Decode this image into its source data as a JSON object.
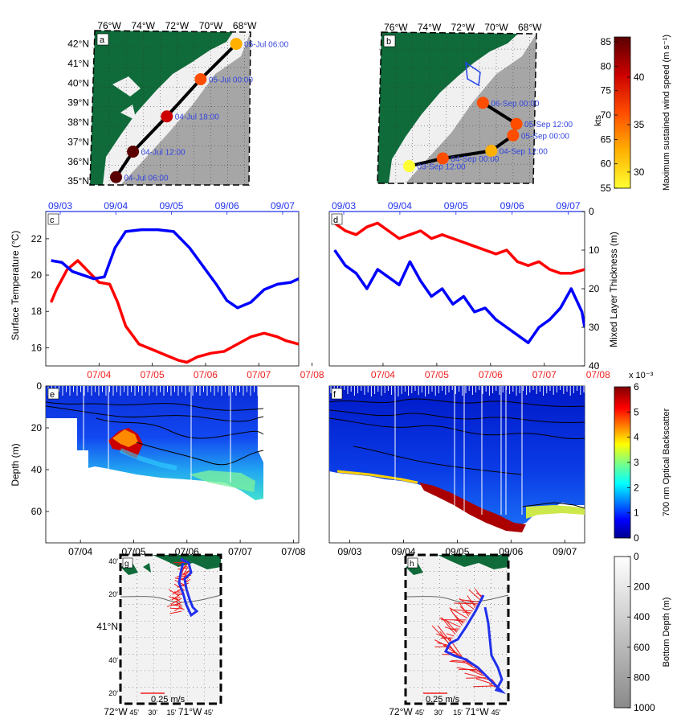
{
  "chart_data": [
    {
      "panel": "a",
      "type": "map",
      "lon_labels": [
        "76°W",
        "74°W",
        "72°W",
        "70°W",
        "68°W"
      ],
      "lat_labels": [
        "42°N",
        "41°N",
        "40°N",
        "39°N",
        "38°N",
        "37°N",
        "36°N",
        "35°N"
      ],
      "track": [
        {
          "lon": -75.6,
          "lat": 35.2,
          "label": "04-Jul 06:00",
          "wind_kts": 86
        },
        {
          "lon": -74.6,
          "lat": 36.5,
          "label": "04-Jul 12:00",
          "wind_kts": 86
        },
        {
          "lon": -72.6,
          "lat": 38.3,
          "label": "04-Jul 18:00",
          "wind_kts": 80
        },
        {
          "lon": -70.6,
          "lat": 40.2,
          "label": "05-Jul 00:00",
          "wind_kts": 68
        },
        {
          "lon": -68.5,
          "lat": 42.0,
          "label": "05-Jul 06:00",
          "wind_kts": 63
        }
      ]
    },
    {
      "panel": "b",
      "type": "map",
      "lon_labels": [
        "76°W",
        "74°W",
        "72°W",
        "70°W",
        "68°W"
      ],
      "track": [
        {
          "lon": -75.2,
          "lat": 35.7,
          "label": "03-Sep 12:00",
          "wind_kts": 57
        },
        {
          "lon": -73.2,
          "lat": 36.1,
          "label": "04-Sep 00:00",
          "wind_kts": 68
        },
        {
          "lon": -70.3,
          "lat": 36.5,
          "label": "04-Sep 12:00",
          "wind_kts": 63
        },
        {
          "lon": -69.0,
          "lat": 37.3,
          "label": "05-Sep 00:00",
          "wind_kts": 68
        },
        {
          "lon": -68.8,
          "lat": 37.9,
          "label": "05-Sep 12:00",
          "wind_kts": 70
        },
        {
          "lon": -70.8,
          "lat": 39.0,
          "label": "06-Sep 00:00",
          "wind_kts": 70
        }
      ]
    },
    {
      "panel": "colorbar-wind",
      "type": "colorbar",
      "ylabel": "Maximum sustained wind speed (m s⁻¹)",
      "unit_label": "kts",
      "kts_ticks": [
        85,
        80,
        75,
        70,
        65,
        60,
        55
      ],
      "ms_ticks": [
        40,
        35,
        30
      ],
      "colors": [
        "#ffff33",
        "#ffb000",
        "#ff4d00",
        "#cc0000",
        "#660000"
      ]
    },
    {
      "panel": "c",
      "type": "line",
      "ylabel": "Surface Temperature (°C)",
      "x_ticks": [
        "07/04",
        "07/05",
        "07/06",
        "07/07",
        "07/08"
      ],
      "top_ticks": [
        "09/03",
        "09/04",
        "09/05",
        "09/06",
        "09/07"
      ],
      "yticks": [
        16,
        18,
        20,
        22
      ],
      "ylim": [
        15,
        23.5
      ],
      "series": [
        {
          "color": "#ff0000",
          "points": [
            [
              -0.4,
              18.5
            ],
            [
              -0.3,
              19.2
            ],
            [
              -0.1,
              20.3
            ],
            [
              0.1,
              20.8
            ],
            [
              0.3,
              20.2
            ],
            [
              0.5,
              19.6
            ],
            [
              0.7,
              19.5
            ],
            [
              0.85,
              18.5
            ],
            [
              1.0,
              17.2
            ],
            [
              1.25,
              16.2
            ],
            [
              1.5,
              15.9
            ],
            [
              1.75,
              15.6
            ],
            [
              2.0,
              15.3
            ],
            [
              2.15,
              15.2
            ],
            [
              2.35,
              15.5
            ],
            [
              2.6,
              15.7
            ],
            [
              2.85,
              15.8
            ],
            [
              3.1,
              16.2
            ],
            [
              3.35,
              16.6
            ],
            [
              3.6,
              16.8
            ],
            [
              3.85,
              16.6
            ],
            [
              4.0,
              16.4
            ],
            [
              4.25,
              16.2
            ]
          ]
        },
        {
          "color": "#0000ff",
          "points": [
            [
              -0.4,
              20.8
            ],
            [
              -0.2,
              20.7
            ],
            [
              0.0,
              20.2
            ],
            [
              0.2,
              20.0
            ],
            [
              0.4,
              19.8
            ],
            [
              0.6,
              19.9
            ],
            [
              0.8,
              21.5
            ],
            [
              1.0,
              22.4
            ],
            [
              1.3,
              22.5
            ],
            [
              1.6,
              22.5
            ],
            [
              1.9,
              22.4
            ],
            [
              2.2,
              21.5
            ],
            [
              2.45,
              20.5
            ],
            [
              2.7,
              19.5
            ],
            [
              2.9,
              18.6
            ],
            [
              3.1,
              18.2
            ],
            [
              3.35,
              18.5
            ],
            [
              3.6,
              19.2
            ],
            [
              3.85,
              19.5
            ],
            [
              4.1,
              19.6
            ],
            [
              4.25,
              19.8
            ]
          ]
        }
      ]
    },
    {
      "panel": "d",
      "type": "line",
      "ylabel": "Mixed Layer Thickness (m)",
      "x_ticks": [
        "07/04",
        "07/05",
        "07/06",
        "07/07",
        "07/08"
      ],
      "top_ticks": [
        "09/03",
        "09/04",
        "09/05",
        "09/06",
        "09/07"
      ],
      "yticks": [
        0,
        10,
        20,
        30,
        40
      ],
      "ylim": [
        0,
        40
      ],
      "series": [
        {
          "color": "#ff0000",
          "points": [
            [
              -0.4,
              3
            ],
            [
              -0.2,
              5
            ],
            [
              0.0,
              6
            ],
            [
              0.2,
              4
            ],
            [
              0.4,
              3
            ],
            [
              0.6,
              5
            ],
            [
              0.8,
              7
            ],
            [
              1.0,
              6
            ],
            [
              1.2,
              5
            ],
            [
              1.4,
              7
            ],
            [
              1.6,
              6
            ],
            [
              1.8,
              7
            ],
            [
              2.0,
              8
            ],
            [
              2.2,
              9
            ],
            [
              2.4,
              10
            ],
            [
              2.6,
              11
            ],
            [
              2.8,
              10
            ],
            [
              3.0,
              13
            ],
            [
              3.2,
              14
            ],
            [
              3.4,
              13
            ],
            [
              3.6,
              15
            ],
            [
              3.8,
              16
            ],
            [
              4.0,
              16
            ],
            [
              4.25,
              15
            ]
          ]
        },
        {
          "color": "#0000ff",
          "points": [
            [
              -0.4,
              10
            ],
            [
              -0.2,
              14
            ],
            [
              0.0,
              16
            ],
            [
              0.2,
              20
            ],
            [
              0.4,
              15
            ],
            [
              0.6,
              17
            ],
            [
              0.8,
              19
            ],
            [
              1.0,
              13
            ],
            [
              1.2,
              18
            ],
            [
              1.4,
              22
            ],
            [
              1.6,
              20
            ],
            [
              1.8,
              24
            ],
            [
              2.0,
              22
            ],
            [
              2.2,
              26
            ],
            [
              2.4,
              25
            ],
            [
              2.6,
              28
            ],
            [
              2.8,
              30
            ],
            [
              3.0,
              32
            ],
            [
              3.2,
              34
            ],
            [
              3.4,
              30
            ],
            [
              3.6,
              28
            ],
            [
              3.8,
              25
            ],
            [
              4.0,
              20
            ],
            [
              4.2,
              26
            ],
            [
              4.25,
              30
            ]
          ]
        }
      ]
    },
    {
      "panel": "e",
      "type": "heatmap",
      "ylabel": "Depth (m)",
      "x_ticks": [
        "07/04",
        "07/05",
        "07/06",
        "07/07",
        "07/08"
      ],
      "yticks": [
        0,
        20,
        40,
        60
      ],
      "ylim": [
        0,
        75
      ]
    },
    {
      "panel": "f",
      "type": "heatmap",
      "x_ticks": [
        "09/03",
        "09/04",
        "09/05",
        "09/06",
        "09/07"
      ]
    },
    {
      "panel": "colorbar-backscatter",
      "type": "colorbar",
      "ylabel": "700 nm Optical Backscatter",
      "exponent_label": "x 10⁻³",
      "ticks": [
        6,
        5,
        4,
        3,
        2,
        1,
        0
      ]
    },
    {
      "panel": "g",
      "type": "map",
      "lat_labels": [
        "40'",
        "20'",
        "41°N",
        "40'",
        "20'"
      ],
      "lon_labels": [
        "72°W",
        "45'",
        "30'",
        "15'",
        "71°W",
        "45'"
      ],
      "scale_label": "0.25 m/s"
    },
    {
      "panel": "h",
      "type": "map",
      "lon_labels": [
        "72°W",
        "45'",
        "30'",
        "15'",
        "71°W",
        "45'"
      ],
      "scale_label": "0.25 m/s"
    },
    {
      "panel": "colorbar-depth",
      "type": "colorbar",
      "ylabel": "Bottom Depth (m)",
      "ticks": [
        0,
        200,
        400,
        600,
        800,
        1000
      ]
    }
  ],
  "panel_letters": {
    "a": "a",
    "b": "b",
    "c": "c",
    "d": "d",
    "e": "e",
    "f": "f",
    "g": "g",
    "h": "h"
  }
}
